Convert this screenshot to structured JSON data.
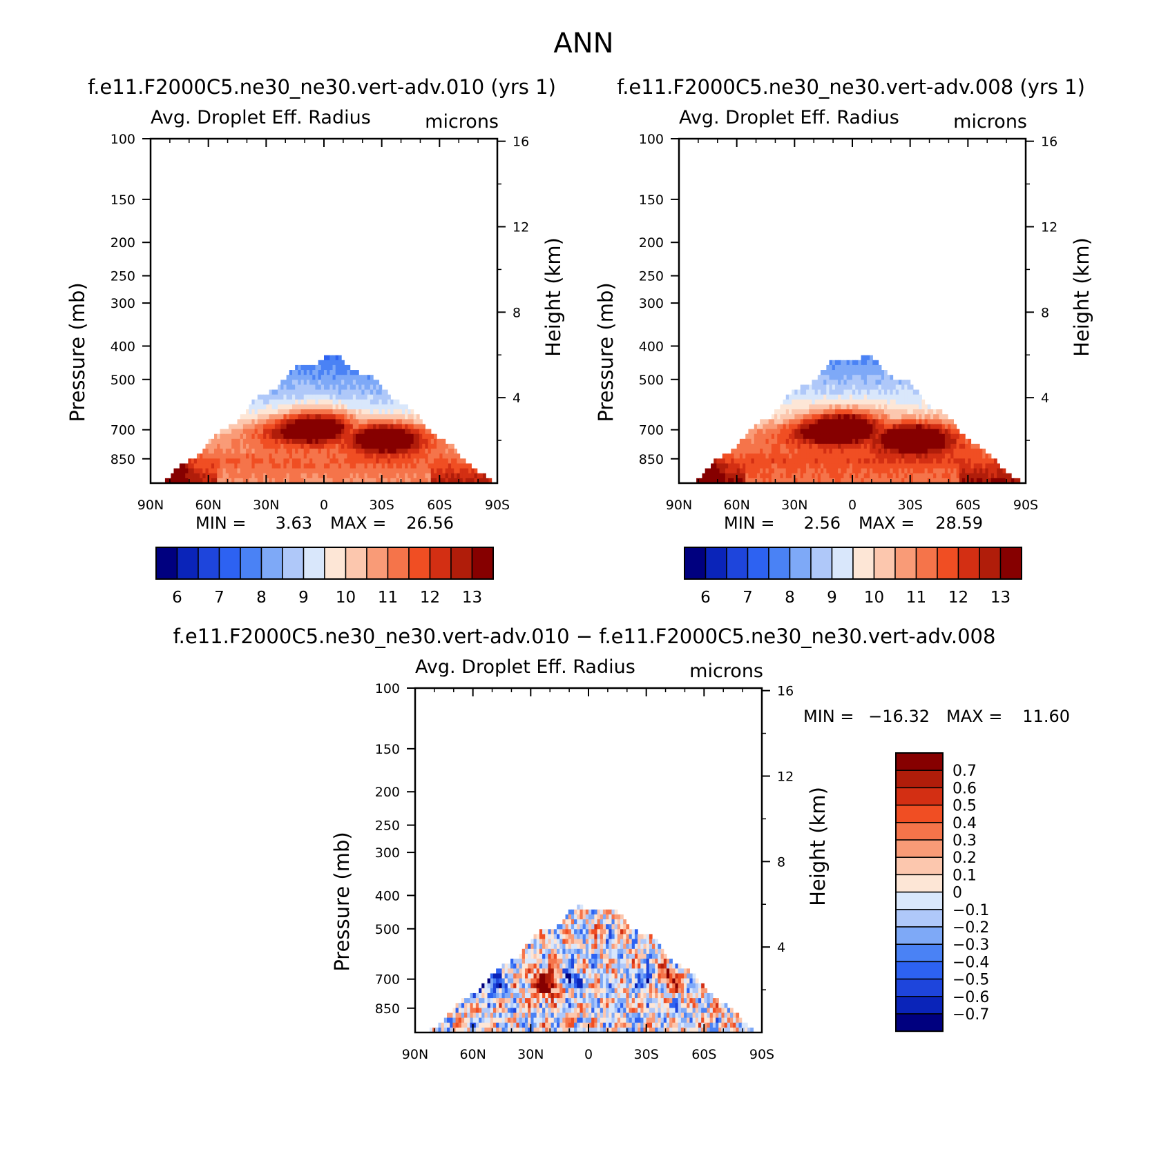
{
  "page_title": "ANN",
  "colors": {
    "scale": [
      "#00007f",
      "#0a24b9",
      "#1e45dc",
      "#2d62f2",
      "#4a82f5",
      "#7ea9f7",
      "#afc8f9",
      "#d9e7fb",
      "#fde6d6",
      "#fcc7ae",
      "#f99b77",
      "#f5744a",
      "#f04e23",
      "#d32f13",
      "#b01d0a",
      "#860000"
    ]
  },
  "panels": [
    {
      "case_title": "f.e11.F2000C5.ne30_ne30.vert-adv.010 (yrs 1)",
      "variable": "Avg. Droplet Eff. Radius",
      "units": "microns",
      "ylabel": "Pressure (mb)",
      "ylabel_right": "Height (km)",
      "min_label": "MIN =",
      "min_value": "3.63",
      "max_label": "MAX =",
      "max_value": "26.56",
      "colorbar_labels": [
        "6",
        "7",
        "8",
        "9",
        "10",
        "11",
        "12",
        "13"
      ]
    },
    {
      "case_title": "f.e11.F2000C5.ne30_ne30.vert-adv.008 (yrs 1)",
      "variable": "Avg. Droplet Eff. Radius",
      "units": "microns",
      "ylabel": "Pressure (mb)",
      "ylabel_right": "Height (km)",
      "min_label": "MIN =",
      "min_value": "2.56",
      "max_label": "MAX =",
      "max_value": "28.59",
      "colorbar_labels": [
        "6",
        "7",
        "8",
        "9",
        "10",
        "11",
        "12",
        "13"
      ]
    },
    {
      "case_title": "f.e11.F2000C5.ne30_ne30.vert-adv.010 − f.e11.F2000C5.ne30_ne30.vert-adv.008",
      "variable": "Avg. Droplet Eff. Radius",
      "units": "microns",
      "ylabel": "Pressure (mb)",
      "ylabel_right": "Height (km)",
      "min_label": "MIN =",
      "min_value": "−16.32",
      "max_label": "MAX =",
      "max_value": "11.60",
      "colorbar_labels": [
        "0.7",
        "0.6",
        "0.5",
        "0.4",
        "0.3",
        "0.2",
        "0.1",
        "0",
        "−0.1",
        "−0.2",
        "−0.3",
        "−0.4",
        "−0.5",
        "−0.6",
        "−0.7"
      ]
    }
  ],
  "chart_data": [
    {
      "type": "heatmap",
      "title": "Avg. Droplet Eff. Radius",
      "xlabel": "",
      "ylabel": "Pressure (mb)",
      "y2label": "Height (km)",
      "x_ticks": [
        "90N",
        "60N",
        "30N",
        "0",
        "30S",
        "60S",
        "90S"
      ],
      "y_ticks": [
        100,
        150,
        200,
        250,
        300,
        400,
        500,
        700,
        850
      ],
      "y2_ticks": [
        16,
        12,
        8,
        4
      ],
      "ylim": [
        100,
        1000
      ],
      "yscale": "log",
      "levels": [
        6,
        6.5,
        7,
        7.5,
        8,
        8.5,
        9,
        9.5,
        10,
        10.5,
        11,
        11.5,
        12,
        12.5,
        13
      ],
      "min": 3.63,
      "max": 26.56
    },
    {
      "type": "heatmap",
      "title": "Avg. Droplet Eff. Radius",
      "xlabel": "",
      "ylabel": "Pressure (mb)",
      "y2label": "Height (km)",
      "x_ticks": [
        "90N",
        "60N",
        "30N",
        "0",
        "30S",
        "60S",
        "90S"
      ],
      "y_ticks": [
        100,
        150,
        200,
        250,
        300,
        400,
        500,
        700,
        850
      ],
      "y2_ticks": [
        16,
        12,
        8,
        4
      ],
      "ylim": [
        100,
        1000
      ],
      "yscale": "log",
      "levels": [
        6,
        6.5,
        7,
        7.5,
        8,
        8.5,
        9,
        9.5,
        10,
        10.5,
        11,
        11.5,
        12,
        12.5,
        13
      ],
      "min": 2.56,
      "max": 28.59
    },
    {
      "type": "heatmap",
      "title": "Avg. Droplet Eff. Radius",
      "xlabel": "",
      "ylabel": "Pressure (mb)",
      "y2label": "Height (km)",
      "x_ticks": [
        "90N",
        "60N",
        "30N",
        "0",
        "30S",
        "60S",
        "90S"
      ],
      "y_ticks": [
        100,
        150,
        200,
        250,
        300,
        400,
        500,
        700,
        850
      ],
      "y2_ticks": [
        16,
        12,
        8,
        4
      ],
      "ylim": [
        100,
        1000
      ],
      "yscale": "log",
      "levels": [
        -0.7,
        -0.6,
        -0.5,
        -0.4,
        -0.3,
        -0.2,
        -0.1,
        0,
        0.1,
        0.2,
        0.3,
        0.4,
        0.5,
        0.6,
        0.7
      ],
      "min": -16.32,
      "max": 11.6
    }
  ]
}
